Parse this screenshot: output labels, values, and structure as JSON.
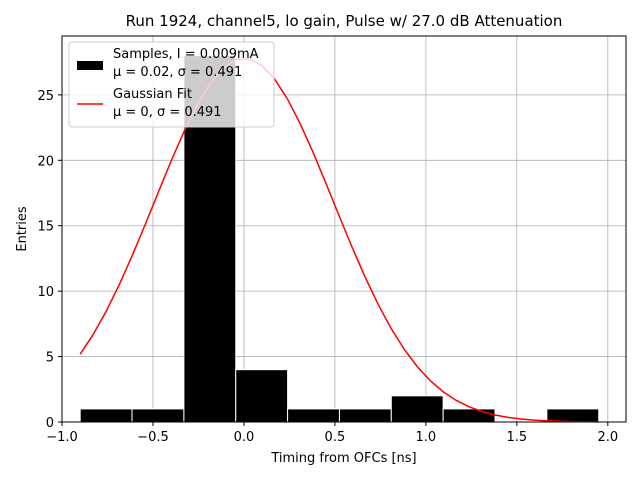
{
  "chart_data": {
    "type": "bar",
    "title": "Run 1924, channel5, lo gain, Pulse w/ 27.0 dB Attenuation",
    "xlabel": "Timing from OFCs [ns]",
    "ylabel": "Entries",
    "xlim": [
      -1.0,
      2.1
    ],
    "ylim": [
      0,
      29.5
    ],
    "xticks": [
      -1.0,
      -0.5,
      0.0,
      0.5,
      1.0,
      1.5,
      2.0
    ],
    "xtick_labels": [
      "−1.0",
      "−0.5",
      "0.0",
      "0.5",
      "1.0",
      "1.5",
      "2.0"
    ],
    "yticks": [
      0,
      5,
      10,
      15,
      20,
      25
    ],
    "ytick_labels": [
      "0",
      "5",
      "10",
      "15",
      "20",
      "25"
    ],
    "grid": true,
    "legend_position": "top-left",
    "histogram": {
      "name": "Samples, I = 0.009mA",
      "stats_label": "μ = 0.02, σ = 0.491",
      "color": "#000000",
      "edge_color": "#ffffff",
      "bins": [
        {
          "x0": -0.9,
          "x1": -0.615,
          "count": 1
        },
        {
          "x0": -0.615,
          "x1": -0.33,
          "count": 1
        },
        {
          "x0": -0.33,
          "x1": -0.045,
          "count": 28
        },
        {
          "x0": -0.045,
          "x1": 0.24,
          "count": 4
        },
        {
          "x0": 0.24,
          "x1": 0.525,
          "count": 1
        },
        {
          "x0": 0.525,
          "x1": 0.81,
          "count": 1
        },
        {
          "x0": 0.81,
          "x1": 1.095,
          "count": 2
        },
        {
          "x0": 1.095,
          "x1": 1.38,
          "count": 1
        },
        {
          "x0": 1.38,
          "x1": 1.665,
          "count": 0
        },
        {
          "x0": 1.665,
          "x1": 1.95,
          "count": 1
        }
      ]
    },
    "fit": {
      "name": "Gaussian Fit",
      "stats_label": "μ = 0, σ = 0.491",
      "type": "gaussian",
      "amplitude": 27.8,
      "mu": 0.0,
      "sigma": 0.491,
      "x_range": [
        -0.9,
        1.95
      ],
      "color": "#ff0000"
    }
  }
}
